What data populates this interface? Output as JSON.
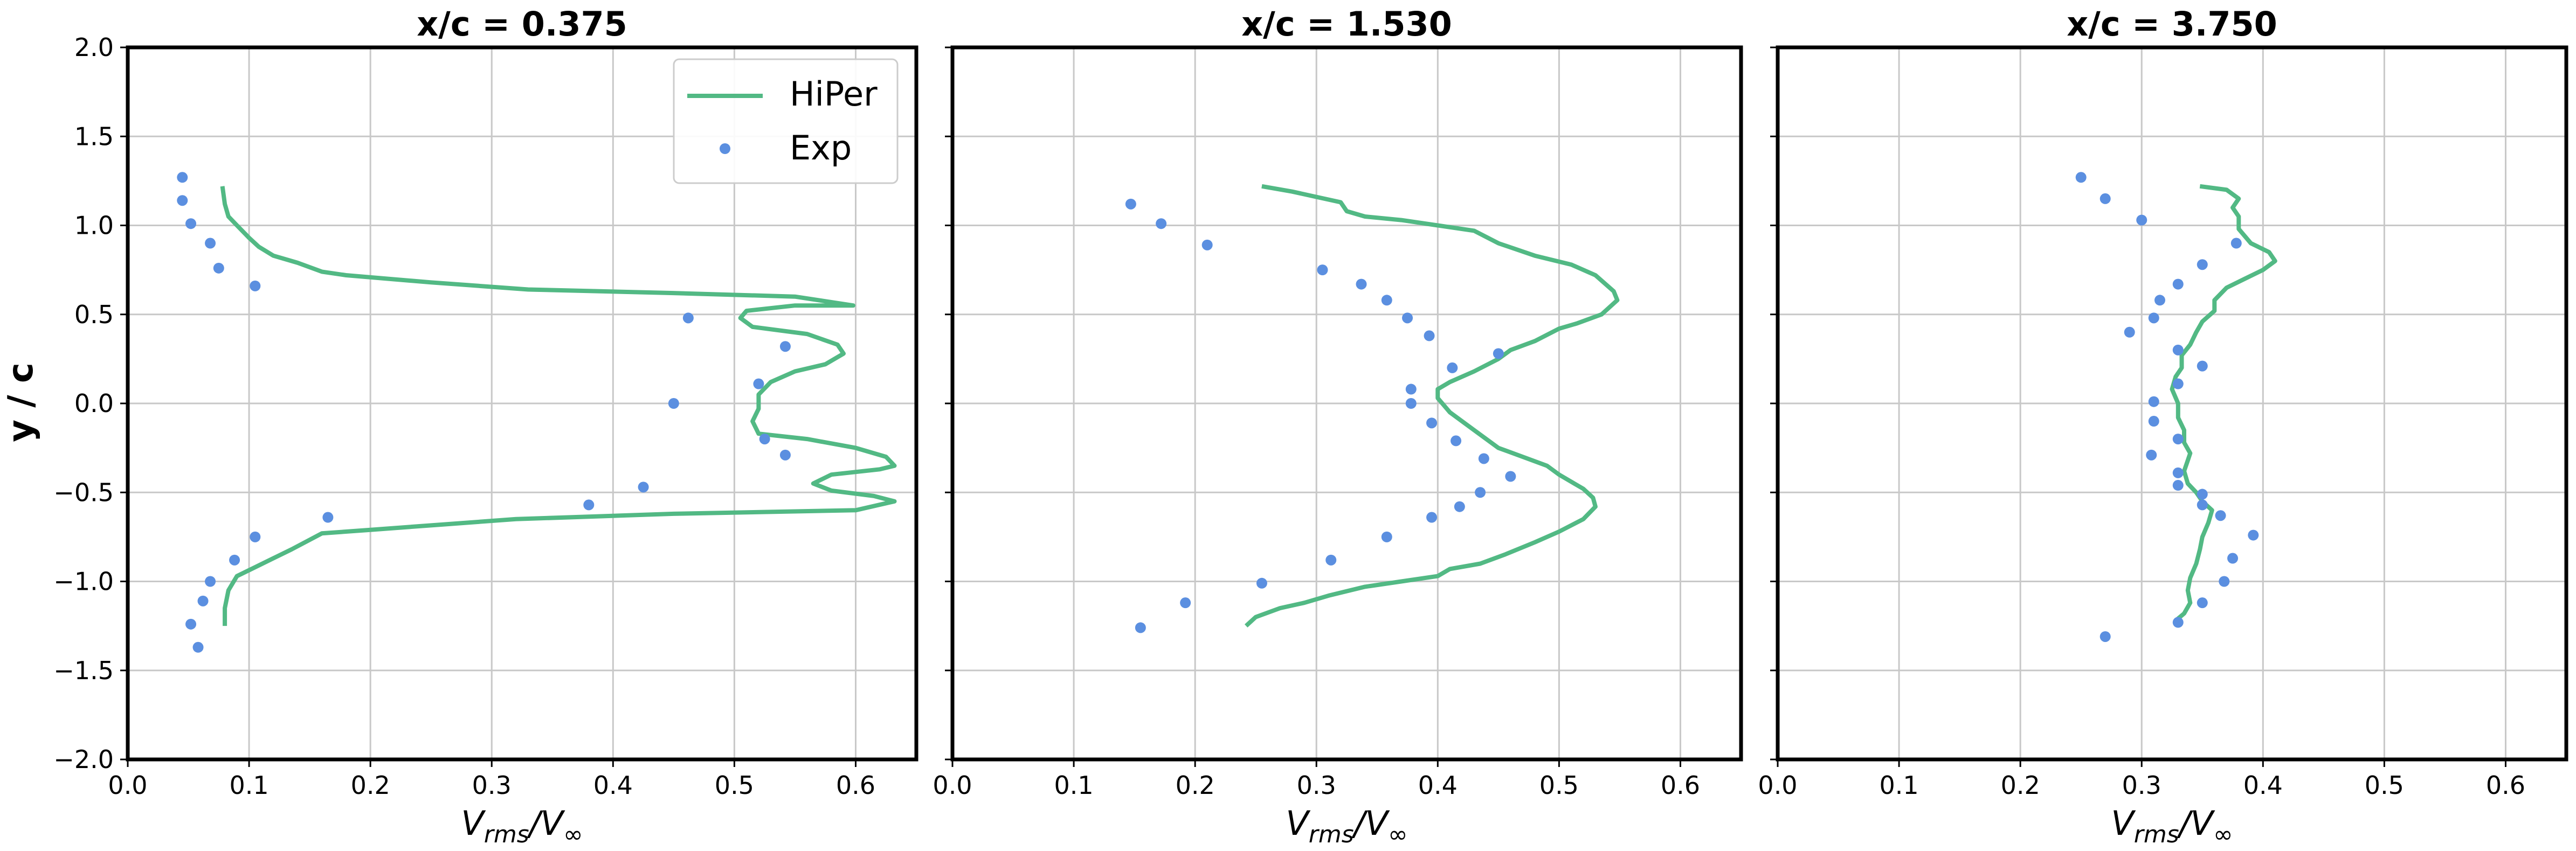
{
  "figure": {
    "shared_ylabel": "y / c",
    "xlabel_main": "V",
    "xlabel_sub": "rms",
    "xlabel_div": "/V",
    "xlabel_inf": "∞"
  },
  "legend": {
    "line_label": "HiPer",
    "points_label": "Exp"
  },
  "colors": {
    "line": "#52b984",
    "points": "#5b8fe0",
    "grid": "#c8c8c8",
    "axes": "#000000"
  },
  "chart_data": [
    {
      "type": "line",
      "title": "x/c = 0.375",
      "xlabel": "Vrms/V∞",
      "ylabel": "y / c",
      "xlim": [
        0.0,
        0.65
      ],
      "ylim": [
        -2.0,
        2.0
      ],
      "xticks": [
        "0.0",
        "0.1",
        "0.2",
        "0.3",
        "0.4",
        "0.5",
        "0.6"
      ],
      "yticks": [
        "−2.0",
        "−1.5",
        "−1.0",
        "−0.5",
        "0.0",
        "0.5",
        "1.0",
        "1.5",
        "2.0"
      ],
      "grid": true,
      "legend_position": "top-right",
      "series": [
        {
          "name": "HiPer",
          "kind": "line",
          "points": [
            [
              0.078,
              1.22
            ],
            [
              0.08,
              1.12
            ],
            [
              0.083,
              1.05
            ],
            [
              0.09,
              1.0
            ],
            [
              0.1,
              0.93
            ],
            [
              0.108,
              0.88
            ],
            [
              0.12,
              0.83
            ],
            [
              0.14,
              0.79
            ],
            [
              0.16,
              0.74
            ],
            [
              0.18,
              0.72
            ],
            [
              0.25,
              0.68
            ],
            [
              0.33,
              0.64
            ],
            [
              0.45,
              0.62
            ],
            [
              0.55,
              0.6
            ],
            [
              0.598,
              0.55
            ],
            [
              0.55,
              0.55
            ],
            [
              0.51,
              0.52
            ],
            [
              0.505,
              0.48
            ],
            [
              0.515,
              0.43
            ],
            [
              0.56,
              0.39
            ],
            [
              0.585,
              0.33
            ],
            [
              0.59,
              0.28
            ],
            [
              0.575,
              0.22
            ],
            [
              0.55,
              0.18
            ],
            [
              0.53,
              0.12
            ],
            [
              0.52,
              0.05
            ],
            [
              0.52,
              -0.03
            ],
            [
              0.515,
              -0.1
            ],
            [
              0.52,
              -0.17
            ],
            [
              0.56,
              -0.2
            ],
            [
              0.6,
              -0.25
            ],
            [
              0.625,
              -0.3
            ],
            [
              0.632,
              -0.35
            ],
            [
              0.62,
              -0.37
            ],
            [
              0.58,
              -0.4
            ],
            [
              0.565,
              -0.45
            ],
            [
              0.58,
              -0.49
            ],
            [
              0.615,
              -0.52
            ],
            [
              0.632,
              -0.55
            ],
            [
              0.6,
              -0.6
            ],
            [
              0.45,
              -0.62
            ],
            [
              0.32,
              -0.65
            ],
            [
              0.26,
              -0.68
            ],
            [
              0.2,
              -0.71
            ],
            [
              0.16,
              -0.73
            ],
            [
              0.135,
              -0.82
            ],
            [
              0.12,
              -0.87
            ],
            [
              0.105,
              -0.92
            ],
            [
              0.09,
              -0.97
            ],
            [
              0.083,
              -1.05
            ],
            [
              0.08,
              -1.15
            ],
            [
              0.08,
              -1.25
            ]
          ]
        },
        {
          "name": "Exp",
          "kind": "scatter",
          "points": [
            [
              0.045,
              1.27
            ],
            [
              0.045,
              1.14
            ],
            [
              0.052,
              1.01
            ],
            [
              0.068,
              0.9
            ],
            [
              0.075,
              0.76
            ],
            [
              0.105,
              0.66
            ],
            [
              0.462,
              0.48
            ],
            [
              0.542,
              0.32
            ],
            [
              0.52,
              0.11
            ],
            [
              0.45,
              0.0
            ],
            [
              0.525,
              -0.2
            ],
            [
              0.542,
              -0.29
            ],
            [
              0.425,
              -0.47
            ],
            [
              0.38,
              -0.57
            ],
            [
              0.165,
              -0.64
            ],
            [
              0.105,
              -0.75
            ],
            [
              0.088,
              -0.88
            ],
            [
              0.068,
              -1.0
            ],
            [
              0.062,
              -1.11
            ],
            [
              0.052,
              -1.24
            ],
            [
              0.058,
              -1.37
            ]
          ]
        }
      ]
    },
    {
      "type": "line",
      "title": "x/c = 1.530",
      "xlabel": "Vrms/V∞",
      "xlim": [
        0.0,
        0.65
      ],
      "ylim": [
        -2.0,
        2.0
      ],
      "xticks": [
        "0.0",
        "0.1",
        "0.2",
        "0.3",
        "0.4",
        "0.5",
        "0.6"
      ],
      "grid": true,
      "series": [
        {
          "name": "HiPer",
          "kind": "line",
          "points": [
            [
              0.255,
              1.22
            ],
            [
              0.28,
              1.19
            ],
            [
              0.3,
              1.16
            ],
            [
              0.32,
              1.13
            ],
            [
              0.325,
              1.08
            ],
            [
              0.34,
              1.05
            ],
            [
              0.37,
              1.03
            ],
            [
              0.4,
              1.0
            ],
            [
              0.43,
              0.97
            ],
            [
              0.45,
              0.9
            ],
            [
              0.48,
              0.83
            ],
            [
              0.51,
              0.78
            ],
            [
              0.53,
              0.72
            ],
            [
              0.545,
              0.63
            ],
            [
              0.548,
              0.58
            ],
            [
              0.535,
              0.5
            ],
            [
              0.515,
              0.45
            ],
            [
              0.5,
              0.42
            ],
            [
              0.48,
              0.35
            ],
            [
              0.46,
              0.3
            ],
            [
              0.45,
              0.25
            ],
            [
              0.43,
              0.18
            ],
            [
              0.41,
              0.12
            ],
            [
              0.4,
              0.08
            ],
            [
              0.4,
              0.03
            ],
            [
              0.41,
              -0.05
            ],
            [
              0.43,
              -0.15
            ],
            [
              0.45,
              -0.25
            ],
            [
              0.47,
              -0.3
            ],
            [
              0.49,
              -0.35
            ],
            [
              0.5,
              -0.4
            ],
            [
              0.52,
              -0.48
            ],
            [
              0.528,
              -0.53
            ],
            [
              0.53,
              -0.58
            ],
            [
              0.52,
              -0.65
            ],
            [
              0.5,
              -0.72
            ],
            [
              0.48,
              -0.78
            ],
            [
              0.455,
              -0.85
            ],
            [
              0.435,
              -0.9
            ],
            [
              0.41,
              -0.93
            ],
            [
              0.4,
              -0.97
            ],
            [
              0.37,
              -1.0
            ],
            [
              0.34,
              -1.03
            ],
            [
              0.31,
              -1.08
            ],
            [
              0.29,
              -1.12
            ],
            [
              0.27,
              -1.15
            ],
            [
              0.25,
              -1.2
            ],
            [
              0.242,
              -1.25
            ]
          ]
        },
        {
          "name": "Exp",
          "kind": "scatter",
          "points": [
            [
              0.147,
              1.12
            ],
            [
              0.172,
              1.01
            ],
            [
              0.21,
              0.89
            ],
            [
              0.305,
              0.75
            ],
            [
              0.337,
              0.67
            ],
            [
              0.358,
              0.58
            ],
            [
              0.375,
              0.48
            ],
            [
              0.393,
              0.38
            ],
            [
              0.45,
              0.28
            ],
            [
              0.412,
              0.2
            ],
            [
              0.378,
              0.08
            ],
            [
              0.378,
              0.0
            ],
            [
              0.395,
              -0.11
            ],
            [
              0.415,
              -0.21
            ],
            [
              0.438,
              -0.31
            ],
            [
              0.46,
              -0.41
            ],
            [
              0.435,
              -0.5
            ],
            [
              0.418,
              -0.58
            ],
            [
              0.395,
              -0.64
            ],
            [
              0.358,
              -0.75
            ],
            [
              0.312,
              -0.88
            ],
            [
              0.255,
              -1.01
            ],
            [
              0.192,
              -1.12
            ],
            [
              0.155,
              -1.26
            ]
          ]
        }
      ]
    },
    {
      "type": "line",
      "title": "x/c = 3.750",
      "xlabel": "Vrms/V∞",
      "xlim": [
        0.0,
        0.65
      ],
      "ylim": [
        -2.0,
        2.0
      ],
      "xticks": [
        "0.0",
        "0.1",
        "0.2",
        "0.3",
        "0.4",
        "0.5",
        "0.6"
      ],
      "grid": true,
      "series": [
        {
          "name": "HiPer",
          "kind": "line",
          "points": [
            [
              0.348,
              1.22
            ],
            [
              0.37,
              1.2
            ],
            [
              0.38,
              1.15
            ],
            [
              0.375,
              1.1
            ],
            [
              0.38,
              1.05
            ],
            [
              0.38,
              0.98
            ],
            [
              0.39,
              0.9
            ],
            [
              0.405,
              0.85
            ],
            [
              0.41,
              0.8
            ],
            [
              0.4,
              0.75
            ],
            [
              0.385,
              0.7
            ],
            [
              0.37,
              0.65
            ],
            [
              0.36,
              0.58
            ],
            [
              0.36,
              0.52
            ],
            [
              0.35,
              0.46
            ],
            [
              0.345,
              0.4
            ],
            [
              0.34,
              0.33
            ],
            [
              0.333,
              0.27
            ],
            [
              0.333,
              0.2
            ],
            [
              0.328,
              0.15
            ],
            [
              0.325,
              0.08
            ],
            [
              0.33,
              0.0
            ],
            [
              0.33,
              -0.08
            ],
            [
              0.335,
              -0.15
            ],
            [
              0.335,
              -0.22
            ],
            [
              0.34,
              -0.28
            ],
            [
              0.338,
              -0.32
            ],
            [
              0.335,
              -0.38
            ],
            [
              0.338,
              -0.45
            ],
            [
              0.345,
              -0.5
            ],
            [
              0.35,
              -0.55
            ],
            [
              0.358,
              -0.6
            ],
            [
              0.355,
              -0.67
            ],
            [
              0.35,
              -0.75
            ],
            [
              0.348,
              -0.82
            ],
            [
              0.345,
              -0.9
            ],
            [
              0.34,
              -0.98
            ],
            [
              0.338,
              -1.05
            ],
            [
              0.34,
              -1.12
            ],
            [
              0.335,
              -1.18
            ],
            [
              0.328,
              -1.22
            ],
            [
              0.332,
              -1.25
            ]
          ]
        },
        {
          "name": "Exp",
          "kind": "scatter",
          "points": [
            [
              0.25,
              1.27
            ],
            [
              0.27,
              1.15
            ],
            [
              0.3,
              1.03
            ],
            [
              0.378,
              0.9
            ],
            [
              0.35,
              0.78
            ],
            [
              0.33,
              0.67
            ],
            [
              0.315,
              0.58
            ],
            [
              0.31,
              0.48
            ],
            [
              0.29,
              0.4
            ],
            [
              0.33,
              0.3
            ],
            [
              0.35,
              0.21
            ],
            [
              0.33,
              0.11
            ],
            [
              0.31,
              0.01
            ],
            [
              0.31,
              -0.1
            ],
            [
              0.33,
              -0.2
            ],
            [
              0.308,
              -0.29
            ],
            [
              0.33,
              -0.39
            ],
            [
              0.33,
              -0.46
            ],
            [
              0.35,
              -0.51
            ],
            [
              0.35,
              -0.57
            ],
            [
              0.365,
              -0.63
            ],
            [
              0.392,
              -0.74
            ],
            [
              0.375,
              -0.87
            ],
            [
              0.368,
              -1.0
            ],
            [
              0.35,
              -1.12
            ],
            [
              0.33,
              -1.23
            ],
            [
              0.27,
              -1.31
            ]
          ]
        }
      ]
    }
  ]
}
